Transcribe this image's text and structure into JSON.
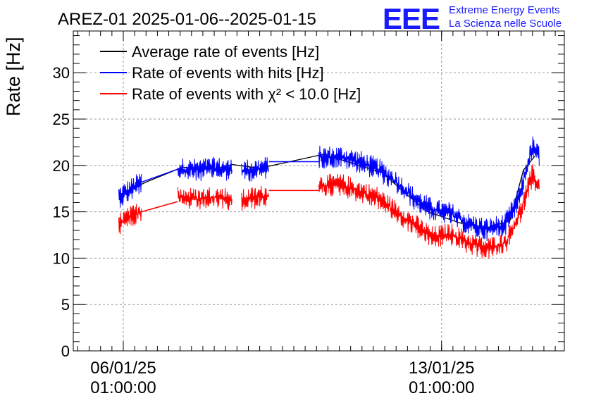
{
  "chart_data": {
    "type": "line",
    "title": "AREZ-01 2025-01-06--2025-01-15",
    "ylabel": "Rate [Hz]",
    "xlabel": "",
    "ylim": [
      0,
      34.5
    ],
    "y_ticks": [
      "0",
      "5",
      "10",
      "15",
      "20",
      "25",
      "30"
    ],
    "x_ticks": [
      {
        "date": "06/01/25",
        "time": "01:00:00",
        "day": 0
      },
      {
        "date": "13/01/25",
        "time": "01:00:00",
        "day": 7
      }
    ],
    "xlim_days": [
      -1.1,
      9.7
    ],
    "grid": true,
    "legend_position": "top-left",
    "series": [
      {
        "name": "Average rate of events [Hz]",
        "color": "#000000",
        "x_days": [
          -0.1,
          0.5,
          1.3,
          2.0,
          2.4,
          3.0,
          4.4,
          5.0,
          5.7,
          6.2,
          6.7,
          7.4,
          8.0,
          8.5,
          8.8,
          9.05
        ],
        "values": [
          16.8,
          18.2,
          19.8,
          19.6,
          20.1,
          19.7,
          21.2,
          20.3,
          19.2,
          17.0,
          15.0,
          13.8,
          13.3,
          14.0,
          19.5,
          21.0
        ]
      },
      {
        "name": "Rate of events with hits [Hz]",
        "color": "#0000ff",
        "segments": [
          {
            "x_days": [
              -0.1,
              0.2,
              0.4
            ],
            "values": [
              16.6,
              17.5,
              18.2
            ]
          },
          {
            "x_days": [
              1.2,
              1.6,
              2.0,
              2.4
            ],
            "values": [
              19.6,
              19.5,
              19.7,
              19.5
            ]
          },
          {
            "x_days": [
              2.6,
              3.0,
              3.2
            ],
            "values": [
              19.4,
              19.6,
              19.8
            ]
          },
          {
            "x_days": [
              4.3,
              4.8,
              5.2,
              5.6,
              6.0,
              6.4,
              6.8,
              7.2,
              7.6,
              8.0,
              8.4,
              8.7,
              9.0,
              9.15
            ],
            "values": [
              20.9,
              20.9,
              20.4,
              19.6,
              18.2,
              16.4,
              15.2,
              14.8,
              13.6,
              13.1,
              13.6,
              16.5,
              22.0,
              20.9
            ]
          }
        ],
        "connectors": [
          [
            [
              0.4,
              18.2
            ],
            [
              1.2,
              19.6
            ]
          ],
          [
            [
              3.2,
              20.4
            ],
            [
              4.3,
              20.4
            ]
          ]
        ]
      },
      {
        "name": "Rate of events with χ² < 10.0 [Hz]",
        "color": "#ff0000",
        "segments": [
          {
            "x_days": [
              -0.1,
              0.2,
              0.4
            ],
            "values": [
              13.7,
              14.5,
              15.0
            ]
          },
          {
            "x_days": [
              1.2,
              1.6,
              2.0,
              2.4
            ],
            "values": [
              16.6,
              16.3,
              16.6,
              16.3
            ]
          },
          {
            "x_days": [
              2.6,
              3.0,
              3.2
            ],
            "values": [
              16.2,
              16.6,
              16.8
            ]
          },
          {
            "x_days": [
              4.3,
              4.8,
              5.2,
              5.6,
              6.0,
              6.4,
              6.8,
              7.2,
              7.6,
              8.0,
              8.4,
              8.7,
              9.0,
              9.15
            ],
            "values": [
              17.8,
              17.9,
              17.2,
              16.5,
              15.0,
              13.6,
              12.2,
              12.6,
              11.6,
              11.0,
              11.6,
              14.5,
              19.0,
              17.6
            ]
          }
        ],
        "connectors": [
          [
            [
              0.4,
              15.0
            ],
            [
              1.2,
              16.1
            ]
          ],
          [
            [
              3.2,
              17.3
            ],
            [
              4.3,
              17.3
            ]
          ]
        ]
      }
    ]
  },
  "logo": {
    "mark": "EEE",
    "line1": "Extreme Energy Events",
    "line2": "La Scienza nelle Scuole",
    "color": "#1a1aff"
  }
}
